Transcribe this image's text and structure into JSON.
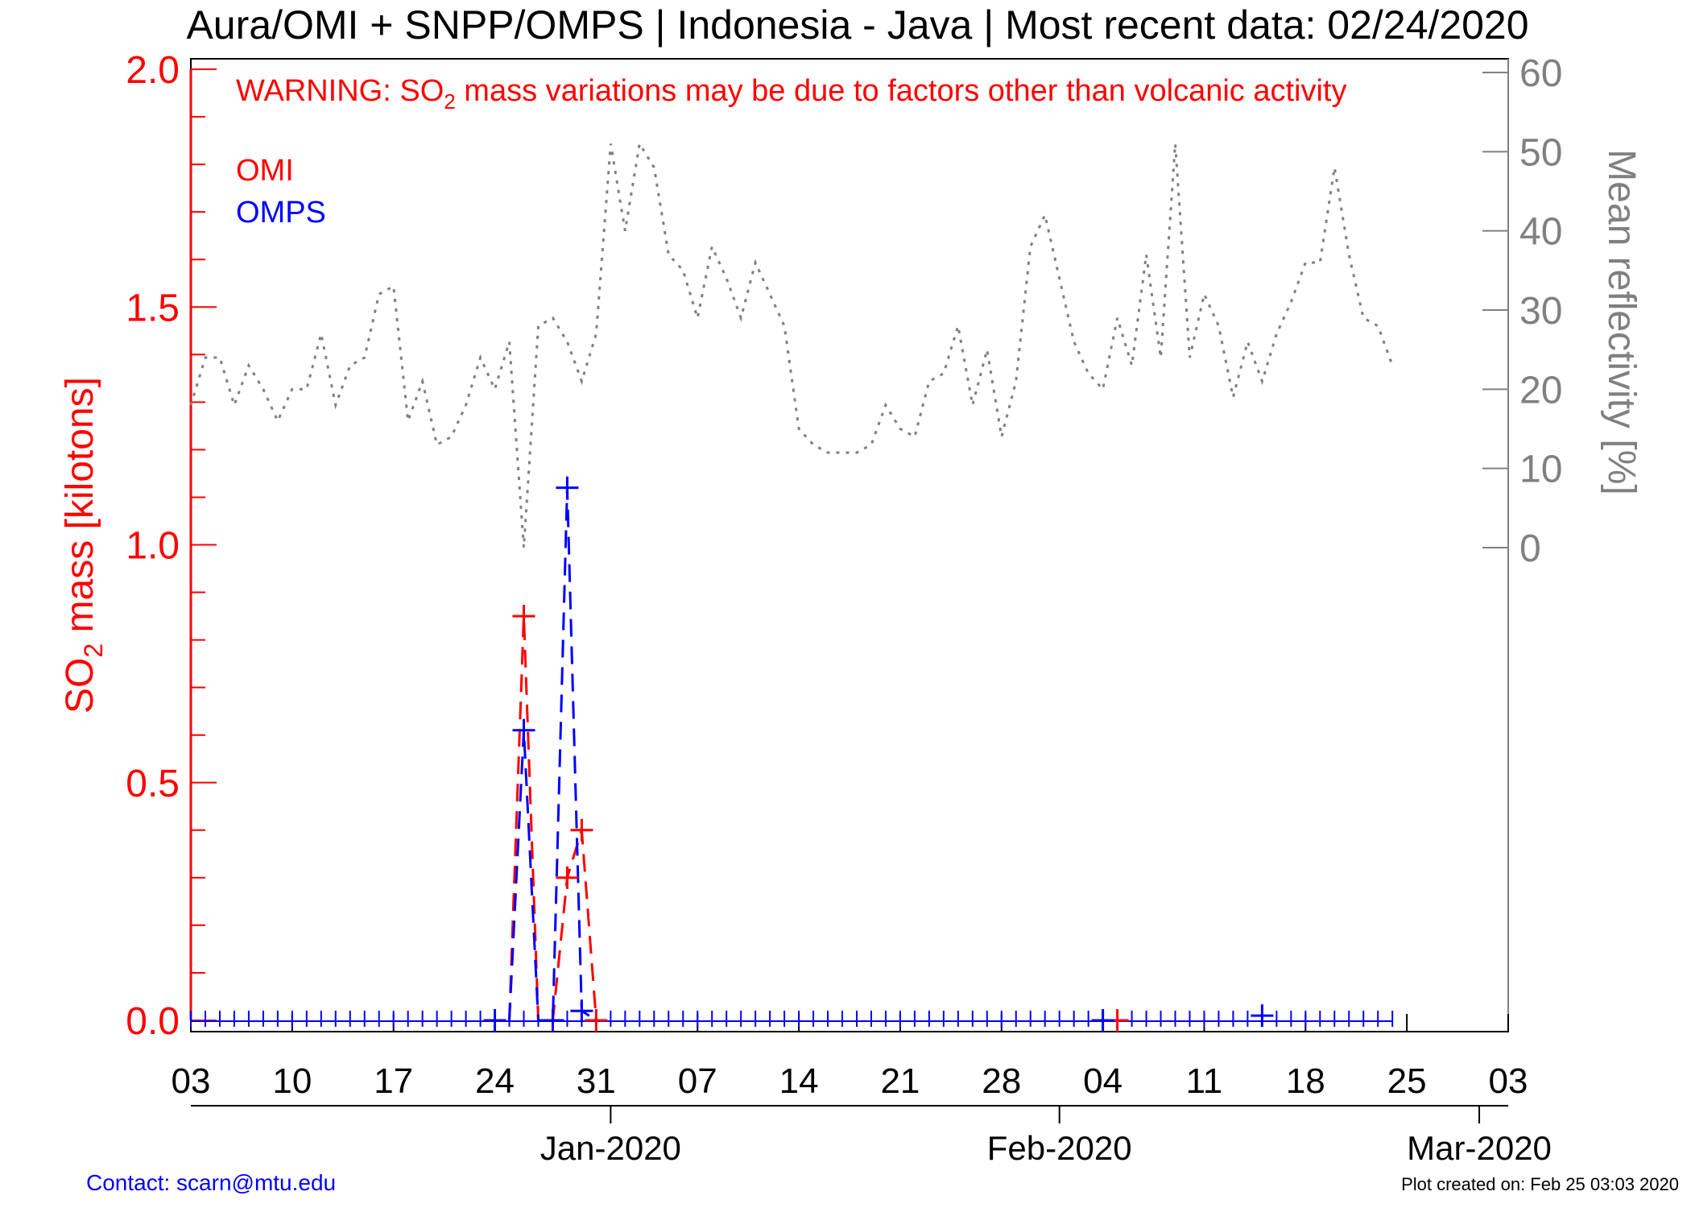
{
  "title": "Aura/OMI + SNPP/OMPS | Indonesia - Java | Most recent data: 02/24/2020",
  "warning": {
    "prefix": "WARNING: SO",
    "sub": "2",
    "suffix": " mass variations may be due to factors other than volcanic activity"
  },
  "legend": [
    {
      "name": "OMI",
      "color": "#ff0000"
    },
    {
      "name": "OMPS",
      "color": "#0000ff"
    }
  ],
  "left_axis": {
    "label_prefix": "SO",
    "label_sub": "2",
    "label_suffix": " mass [kilotons]",
    "color": "#ff0000",
    "min": 0.0,
    "max": 2.0,
    "ticks": [
      "0.0",
      "0.5",
      "1.0",
      "1.5",
      "2.0"
    ]
  },
  "right_axis": {
    "label": "Mean reflectivity [%]",
    "color": "#808080",
    "ticks": [
      "0",
      "10",
      "20",
      "30",
      "40",
      "50",
      "60"
    ]
  },
  "x_axis": {
    "tick_labels": [
      "03",
      "10",
      "17",
      "24",
      "31",
      "07",
      "14",
      "21",
      "28",
      "04",
      "11",
      "18",
      "25",
      "03"
    ],
    "month_labels": [
      "Jan-2020",
      "Feb-2020",
      "Mar-2020"
    ]
  },
  "footer": {
    "contact": "Contact: scarn@mtu.edu",
    "created": "Plot created on: Feb 25 03:03 2020"
  },
  "chart_data": {
    "type": "line",
    "x_range": [
      "2019-12-03",
      "2020-03-03"
    ],
    "left_ylim": [
      0,
      2.0
    ],
    "right_ylim": [
      0,
      60
    ],
    "series": [
      {
        "name": "OMI",
        "axis": "left",
        "color": "#ff0000",
        "style": "dashed",
        "marker": "plus",
        "x": [
          "2019-12-26",
          "2019-12-29",
          "2019-12-30",
          "2019-12-31",
          "2020-02-05"
        ],
        "y": [
          0.85,
          0.3,
          0.4,
          0.0,
          0.0
        ]
      },
      {
        "name": "OMPS",
        "axis": "left",
        "color": "#0000ff",
        "style": "dashed",
        "marker": "plus",
        "x": [
          "2019-12-24",
          "2019-12-26",
          "2019-12-28",
          "2019-12-29",
          "2019-12-30",
          "2020-02-04",
          "2020-02-15"
        ],
        "y": [
          0.0,
          0.61,
          0.0,
          1.12,
          0.02,
          0.0,
          0.01
        ]
      },
      {
        "name": "Mean reflectivity",
        "axis": "right",
        "color": "#808080",
        "style": "dotted",
        "x": [
          "2019-12-03",
          "2019-12-04",
          "2019-12-05",
          "2019-12-06",
          "2019-12-07",
          "2019-12-08",
          "2019-12-09",
          "2019-12-10",
          "2019-12-11",
          "2019-12-12",
          "2019-12-13",
          "2019-12-14",
          "2019-12-15",
          "2019-12-16",
          "2019-12-17",
          "2019-12-18",
          "2019-12-19",
          "2019-12-20",
          "2019-12-21",
          "2019-12-22",
          "2019-12-23",
          "2019-12-24",
          "2019-12-25",
          "2019-12-26",
          "2019-12-27",
          "2019-12-28",
          "2019-12-29",
          "2019-12-30",
          "2019-12-31",
          "2020-01-01",
          "2020-01-02",
          "2020-01-03",
          "2020-01-04",
          "2020-01-05",
          "2020-01-06",
          "2020-01-07",
          "2020-01-08",
          "2020-01-09",
          "2020-01-10",
          "2020-01-11",
          "2020-01-12",
          "2020-01-13",
          "2020-01-14",
          "2020-01-15",
          "2020-01-16",
          "2020-01-17",
          "2020-01-18",
          "2020-01-19",
          "2020-01-20",
          "2020-01-21",
          "2020-01-22",
          "2020-01-23",
          "2020-01-24",
          "2020-01-25",
          "2020-01-26",
          "2020-01-27",
          "2020-01-28",
          "2020-01-29",
          "2020-01-30",
          "2020-01-31",
          "2020-02-01",
          "2020-02-02",
          "2020-02-03",
          "2020-02-04",
          "2020-02-05",
          "2020-02-06",
          "2020-02-07",
          "2020-02-08",
          "2020-02-09",
          "2020-02-10",
          "2020-02-11",
          "2020-02-12",
          "2020-02-13",
          "2020-02-14",
          "2020-02-15",
          "2020-02-16",
          "2020-02-17",
          "2020-02-18",
          "2020-02-19",
          "2020-02-20",
          "2020-02-21",
          "2020-02-22",
          "2020-02-23",
          "2020-02-24"
        ],
        "y": [
          18,
          24,
          24,
          18,
          23,
          20,
          16,
          20,
          20,
          27,
          18,
          23,
          24,
          32,
          33,
          16,
          21,
          13,
          14,
          18,
          24,
          20,
          26,
          0,
          28,
          29,
          26,
          21,
          27,
          51,
          40,
          51,
          48,
          37,
          35,
          29,
          38,
          34,
          29,
          36,
          32,
          28,
          15,
          13,
          12,
          12,
          12,
          13,
          18,
          15,
          14,
          21,
          22,
          28,
          18,
          25,
          14,
          21,
          38,
          42,
          34,
          26,
          22,
          20,
          29,
          23,
          37,
          24,
          51,
          24,
          32,
          28,
          19,
          26,
          21,
          27,
          31,
          36,
          36,
          48,
          37,
          29,
          28,
          23
        ]
      }
    ]
  }
}
